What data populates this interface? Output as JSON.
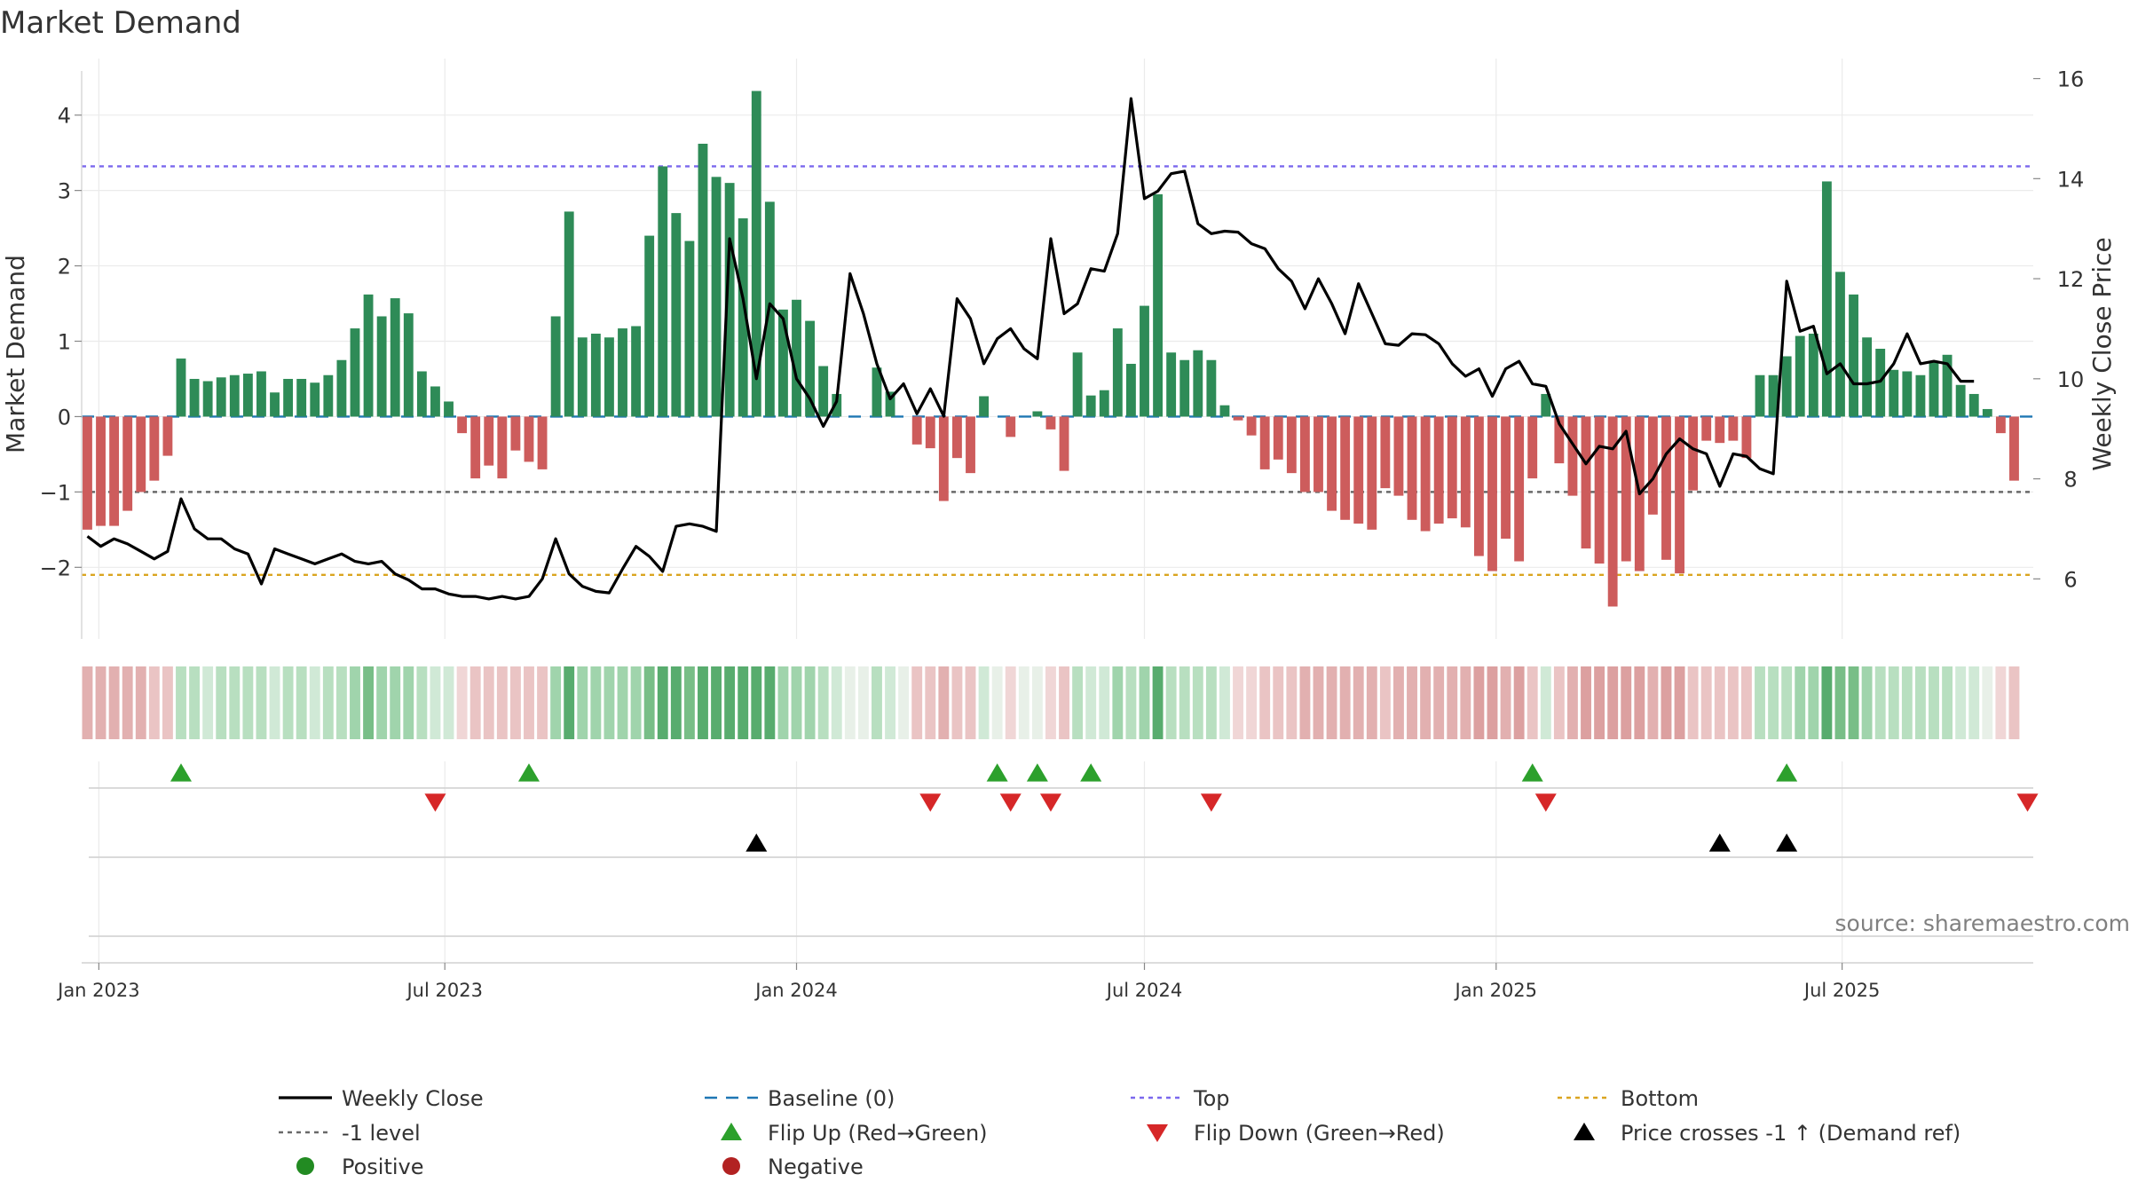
{
  "chart_data": {
    "type": "bar",
    "title": "Market Demand",
    "ylabel": "Market Demand",
    "y2label": "Weekly Close Price",
    "ylim": [
      -2.95,
      4.75
    ],
    "y2lim": [
      4.8,
      16.4
    ],
    "y_ticks": [
      -2,
      -1,
      0,
      1,
      2,
      3,
      4
    ],
    "y_tick_labels": [
      "−2",
      "−1",
      "0",
      "1",
      "2",
      "3",
      "4"
    ],
    "y2_ticks": [
      6,
      8,
      10,
      12,
      14,
      16
    ],
    "x_ticks": [
      "2023-01-01",
      "2023-07-01",
      "2024-01-01",
      "2024-07-01",
      "2025-01-01",
      "2025-07-01"
    ],
    "x_tick_labels": [
      "Jan 2023",
      "Jul 2023",
      "Jan 2024",
      "Jul 2024",
      "Jan 2025",
      "Jul 2025"
    ],
    "x_start": "2022-12-26",
    "x_step_days": 7,
    "x_range": [
      "2022-12-23",
      "2025-10-09"
    ],
    "grid": true,
    "source": "source: sharemaestro.com",
    "ref_lines": {
      "top": 3.32,
      "bottom": -2.1,
      "minus_one": -1,
      "baseline": 0
    },
    "colors": {
      "positive": "#2e8b57",
      "negative": "#cd5c5c",
      "close": "#000000",
      "top": "#7b68ee",
      "bottom": "#daa520",
      "minus_one": "#696969",
      "baseline": "#1f77b4",
      "flip_up": "#2ca02c",
      "flip_down": "#d62728",
      "cross": "#000000",
      "positive_dot": "#228b22",
      "negative_dot": "#b22222"
    },
    "series": [
      {
        "name": "Market Demand",
        "values": [
          -1.5,
          -1.45,
          -1.45,
          -1.25,
          -1.0,
          -0.85,
          -0.52,
          0.77,
          0.5,
          0.47,
          0.52,
          0.55,
          0.57,
          0.6,
          0.32,
          0.5,
          0.5,
          0.45,
          0.55,
          0.75,
          1.17,
          1.62,
          1.33,
          1.57,
          1.37,
          0.6,
          0.4,
          0.2,
          -0.22,
          -0.82,
          -0.65,
          -0.82,
          -0.45,
          -0.6,
          -0.7,
          1.33,
          2.72,
          1.05,
          1.1,
          1.05,
          1.17,
          1.2,
          2.4,
          3.32,
          2.7,
          2.33,
          3.62,
          3.18,
          3.1,
          2.63,
          4.32,
          2.85,
          1.42,
          1.55,
          1.27,
          0.67,
          0.3,
          0.0,
          0.0,
          0.65,
          0.33,
          0.0,
          -0.37,
          -0.42,
          -1.12,
          -0.55,
          -0.75,
          0.27,
          0.0,
          -0.27,
          0.0,
          0.07,
          -0.17,
          -0.72,
          0.85,
          0.28,
          0.35,
          1.17,
          0.7,
          1.47,
          2.95,
          0.85,
          0.75,
          0.88,
          0.75,
          0.15,
          -0.05,
          -0.25,
          -0.7,
          -0.57,
          -0.75,
          -1.0,
          -1.0,
          -1.25,
          -1.37,
          -1.42,
          -1.5,
          -0.95,
          -1.05,
          -1.37,
          -1.52,
          -1.42,
          -1.35,
          -1.47,
          -1.85,
          -2.05,
          -1.62,
          -1.92,
          -0.82,
          0.3,
          -0.62,
          -1.05,
          -1.75,
          -1.95,
          -2.52,
          -1.92,
          -2.05,
          -1.3,
          -1.9,
          -2.08,
          -0.98,
          -0.32,
          -0.35,
          -0.32,
          -0.55,
          0.55,
          0.55,
          0.8,
          1.07,
          1.1,
          3.12,
          1.92,
          1.62,
          1.05,
          0.9,
          0.62,
          0.6,
          0.55,
          0.72,
          0.82,
          0.42,
          0.3,
          0.1,
          -0.22,
          -0.85
        ]
      },
      {
        "name": "Weekly Close",
        "axis": "right",
        "values": [
          6.85,
          6.65,
          6.8,
          6.7,
          6.55,
          6.4,
          6.55,
          7.6,
          7.0,
          6.8,
          6.8,
          6.6,
          6.5,
          5.9,
          6.6,
          6.5,
          6.4,
          6.3,
          6.4,
          6.5,
          6.35,
          6.3,
          6.35,
          6.1,
          5.98,
          5.8,
          5.8,
          5.7,
          5.65,
          5.65,
          5.6,
          5.65,
          5.6,
          5.65,
          6.0,
          6.8,
          6.1,
          5.85,
          5.75,
          5.72,
          6.2,
          6.65,
          6.45,
          6.15,
          7.05,
          7.1,
          7.05,
          6.95,
          12.8,
          11.6,
          10.0,
          11.5,
          11.2,
          10.0,
          9.6,
          9.05,
          9.55,
          12.1,
          11.3,
          10.3,
          9.6,
          9.9,
          9.3,
          9.8,
          9.25,
          11.6,
          11.2,
          10.3,
          10.8,
          11.0,
          10.6,
          10.4,
          12.8,
          11.3,
          11.5,
          12.2,
          12.15,
          12.9,
          15.6,
          13.6,
          13.75,
          14.1,
          14.15,
          13.1,
          12.9,
          12.95,
          12.93,
          12.7,
          12.6,
          12.2,
          11.95,
          11.4,
          12.0,
          11.5,
          10.9,
          11.9,
          11.3,
          10.7,
          10.67,
          10.9,
          10.88,
          10.7,
          10.3,
          10.05,
          10.2,
          9.65,
          10.2,
          10.35,
          9.9,
          9.85,
          9.1,
          8.7,
          8.3,
          8.65,
          8.6,
          8.95,
          7.7,
          8.0,
          8.5,
          8.8,
          8.6,
          8.5,
          7.85,
          8.5,
          8.45,
          8.2,
          8.1,
          11.95,
          10.95,
          11.05,
          10.1,
          10.3,
          9.9,
          9.9,
          9.95,
          10.3,
          10.9,
          10.3,
          10.35,
          10.3,
          9.95,
          9.95
        ]
      }
    ],
    "heat_strip": {
      "values": [
        -1.5,
        -1.45,
        -1.45,
        -1.25,
        -1.0,
        -0.85,
        -0.52,
        0.77,
        0.5,
        0.47,
        0.52,
        0.55,
        0.57,
        0.6,
        0.32,
        0.5,
        0.5,
        0.45,
        0.55,
        0.75,
        1.17,
        1.62,
        1.33,
        1.57,
        1.37,
        0.6,
        0.4,
        0.2,
        -0.22,
        -0.82,
        -0.65,
        -0.82,
        -0.45,
        -0.6,
        -0.7,
        1.33,
        2.72,
        1.05,
        1.1,
        1.05,
        1.17,
        1.2,
        2.4,
        3.32,
        2.7,
        2.33,
        3.62,
        3.18,
        3.1,
        2.63,
        4.32,
        2.85,
        1.42,
        1.55,
        1.27,
        0.67,
        0.3,
        0.0,
        0.0,
        0.65,
        0.33,
        0.0,
        -0.37,
        -0.42,
        -1.12,
        -0.55,
        -0.75,
        0.27,
        0.0,
        -0.27,
        0.0,
        0.07,
        -0.17,
        -0.72,
        0.85,
        0.28,
        0.35,
        1.17,
        0.7,
        1.47,
        2.95,
        0.85,
        0.75,
        0.88,
        0.75,
        0.15,
        -0.05,
        -0.25,
        -0.7,
        -0.57,
        -0.75,
        -1.0,
        -1.0,
        -1.25,
        -1.37,
        -1.42,
        -1.5,
        -0.95,
        -1.05,
        -1.37,
        -1.52,
        -1.42,
        -1.35,
        -1.47,
        -1.85,
        -2.05,
        -1.62,
        -1.92,
        -0.82,
        0.3,
        -0.62,
        -1.05,
        -1.75,
        -1.95,
        -2.52,
        -1.92,
        -2.05,
        -1.3,
        -1.9,
        -2.08,
        -0.98,
        -0.32,
        -0.35,
        -0.32,
        -0.55,
        0.55,
        0.55,
        0.8,
        1.07,
        1.1,
        3.12,
        1.92,
        1.62,
        1.05,
        0.9,
        0.62,
        0.6,
        0.55,
        0.72,
        0.82,
        0.42,
        0.3,
        0.1,
        -0.22,
        -0.85
      ]
    },
    "flip_up_dates": [
      "2023-02-13",
      "2023-08-14",
      "2024-04-15",
      "2024-05-06",
      "2024-06-03",
      "2025-01-20",
      "2025-06-02"
    ],
    "flip_down_dates": [
      "2023-06-26",
      "2024-03-11",
      "2024-04-22",
      "2024-05-13",
      "2024-08-05",
      "2025-01-27",
      "2025-10-06"
    ],
    "cross_up_dates": [
      "2023-12-11",
      "2025-04-28",
      "2025-06-02"
    ],
    "legend": [
      {
        "label": "Weekly Close",
        "marker": "line-solid",
        "color": "#000000"
      },
      {
        "label": "Baseline (0)",
        "marker": "line-dashed",
        "color": "#1f77b4"
      },
      {
        "label": "Top",
        "marker": "line-dotted",
        "color": "#7b68ee"
      },
      {
        "label": "Bottom",
        "marker": "line-dotted",
        "color": "#daa520"
      },
      {
        "label": "-1 level",
        "marker": "line-dotted",
        "color": "#696969"
      },
      {
        "label": "Flip Up (Red→Green)",
        "marker": "triangle-up",
        "color": "#2ca02c"
      },
      {
        "label": "Flip Down (Green→Red)",
        "marker": "triangle-down",
        "color": "#d62728"
      },
      {
        "label": "Price crosses -1 ↑ (Demand ref)",
        "marker": "triangle-up",
        "color": "#000000"
      },
      {
        "label": "Positive",
        "marker": "circle",
        "color": "#228b22"
      },
      {
        "label": "Negative",
        "marker": "circle",
        "color": "#b22222"
      }
    ]
  }
}
